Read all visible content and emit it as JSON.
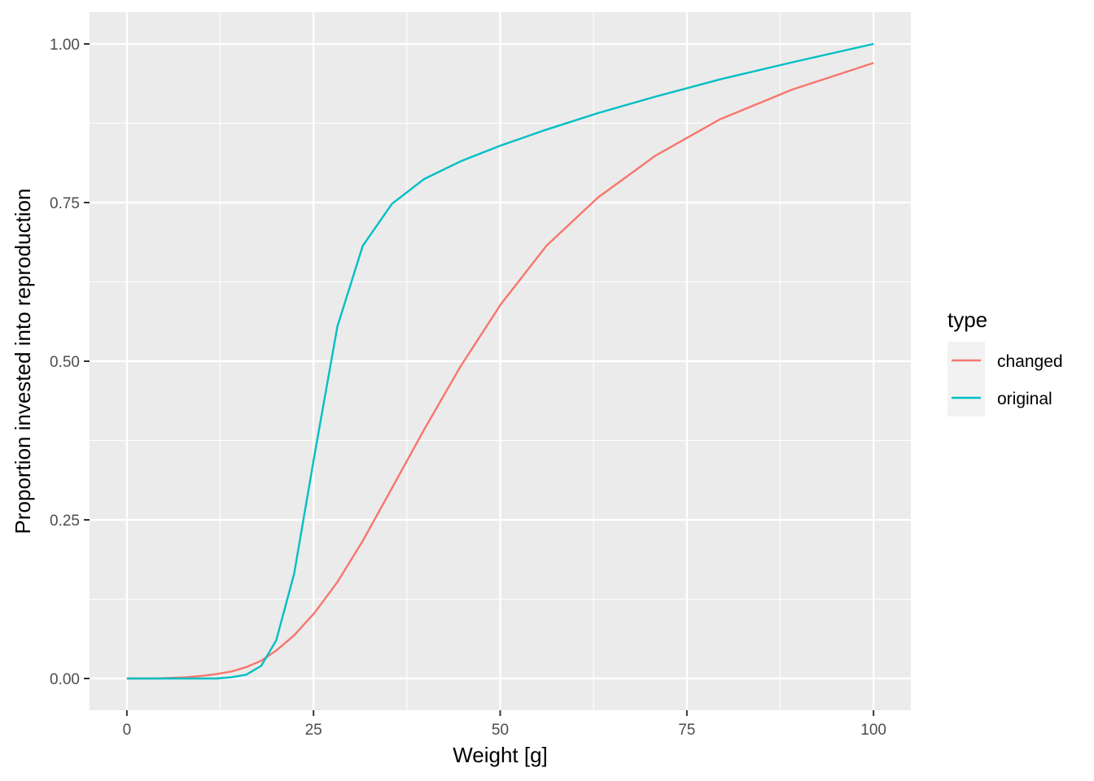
{
  "chart_data": {
    "type": "line",
    "title": "",
    "xlabel": "Weight [g]",
    "ylabel": "Proportion invested into reproduction",
    "xlim": [
      -5,
      105
    ],
    "ylim": [
      -0.05,
      1.05
    ],
    "x_ticks": [
      0,
      25,
      50,
      75,
      100
    ],
    "x_tick_labels": [
      "0",
      "25",
      "50",
      "75",
      "100"
    ],
    "y_ticks": [
      0,
      0.25,
      0.5,
      0.75,
      1.0
    ],
    "y_tick_labels": [
      "0.00",
      "0.25",
      "0.50",
      "0.75",
      "1.00"
    ],
    "grid": true,
    "panel_background": "#EBEBEB",
    "legend": {
      "title": "type",
      "position": "right"
    },
    "series": [
      {
        "name": "changed",
        "color": "#F8766D",
        "x": [
          0,
          2,
          4,
          6,
          8,
          10,
          12,
          14,
          16,
          18,
          20,
          22.4,
          25.1,
          28.2,
          31.6,
          35.5,
          39.8,
          44.7,
          50.1,
          56.2,
          63.1,
          70.8,
          79.4,
          89.1,
          100
        ],
        "y": [
          0,
          0,
          0,
          0.001,
          0.002,
          0.004,
          0.007,
          0.011,
          0.018,
          0.028,
          0.044,
          0.068,
          0.103,
          0.152,
          0.217,
          0.3,
          0.392,
          0.492,
          0.59,
          0.682,
          0.758,
          0.824,
          0.881,
          0.928,
          0.97
        ]
      },
      {
        "name": "original",
        "color": "#00BFC4",
        "x": [
          0,
          2,
          4,
          6,
          8,
          10,
          12,
          14,
          16,
          18,
          20,
          22.4,
          25.1,
          28.2,
          31.6,
          35.5,
          39.8,
          44.7,
          50.1,
          56.2,
          63.1,
          70.8,
          79.4,
          89.1,
          100
        ],
        "y": [
          0,
          0,
          0,
          0,
          0,
          0,
          0,
          0.002,
          0.006,
          0.02,
          0.06,
          0.165,
          0.35,
          0.555,
          0.682,
          0.748,
          0.787,
          0.815,
          0.84,
          0.865,
          0.891,
          0.917,
          0.944,
          0.971,
          1.0
        ]
      }
    ]
  }
}
